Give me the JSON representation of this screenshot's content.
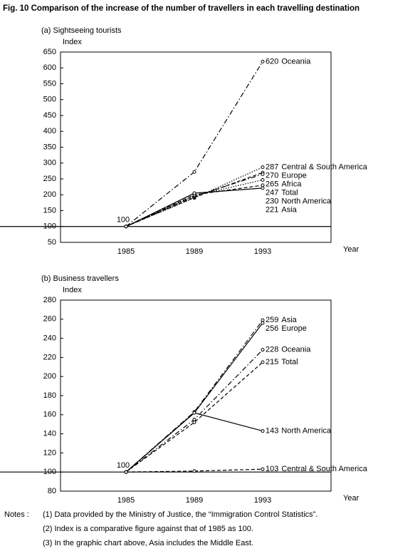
{
  "title": "Fig. 10 Comparison of the increase of the number of travellers in each travelling destination",
  "chart_data": [
    {
      "type": "line",
      "subtitle": "(a) Sightseeing tourists",
      "y_label": "Index",
      "x_label": "Year",
      "categories": [
        "1985",
        "1989",
        "1993"
      ],
      "ylim": [
        50,
        650
      ],
      "yticks": [
        50,
        100,
        150,
        200,
        250,
        300,
        350,
        400,
        450,
        500,
        550,
        600,
        650
      ],
      "baseline": 100,
      "series": [
        {
          "name": "Oceania",
          "color": "#000",
          "style": "dashdot",
          "values": [
            100,
            272,
            620
          ]
        },
        {
          "name": "Central & South America",
          "color": "#000",
          "style": "dotted",
          "values": [
            100,
            190,
            287
          ]
        },
        {
          "name": "Europe",
          "color": "#000",
          "style": "dashed",
          "values": [
            100,
            192,
            270
          ]
        },
        {
          "name": "Africa",
          "color": "#000",
          "style": "dashdot",
          "values": [
            100,
            195,
            265
          ]
        },
        {
          "name": "Total",
          "color": "#000",
          "style": "dotted",
          "values": [
            100,
            197,
            247
          ]
        },
        {
          "name": "North America",
          "color": "#000",
          "style": "dashed",
          "values": [
            100,
            200,
            230
          ]
        },
        {
          "name": "Asia",
          "color": "#000",
          "style": "solid",
          "values": [
            100,
            205,
            221
          ]
        }
      ]
    },
    {
      "type": "line",
      "subtitle": "(b) Business travellers",
      "y_label": "Index",
      "x_label": "Year",
      "categories": [
        "1985",
        "1989",
        "1993"
      ],
      "ylim": [
        80,
        280
      ],
      "yticks": [
        80,
        100,
        120,
        140,
        160,
        180,
        200,
        220,
        240,
        260,
        280
      ],
      "baseline": 100,
      "series": [
        {
          "name": "Asia",
          "color": "#000",
          "style": "dashdot",
          "values": [
            100,
            163,
            259
          ]
        },
        {
          "name": "Europe",
          "color": "#000",
          "style": "solid",
          "values": [
            100,
            162,
            256
          ]
        },
        {
          "name": "Oceania",
          "color": "#000",
          "style": "dashdot",
          "values": [
            100,
            155,
            228
          ]
        },
        {
          "name": "Total",
          "color": "#000",
          "style": "dashed",
          "values": [
            100,
            152,
            215
          ]
        },
        {
          "name": "North America",
          "color": "#000",
          "style": "solid",
          "values": [
            100,
            162,
            143
          ]
        },
        {
          "name": "Central & South America",
          "color": "#000",
          "style": "dashed",
          "values": [
            100,
            101,
            103
          ]
        }
      ]
    }
  ],
  "notes_label": "Notes :",
  "notes": [
    "(1) Data provided by the Ministry of Justice, the “Immigration Control Statistics”.",
    "(2) Index is a comparative figure against that of 1985 as 100.",
    "(3) In the graphic chart above, Asia includes the Middle East."
  ]
}
